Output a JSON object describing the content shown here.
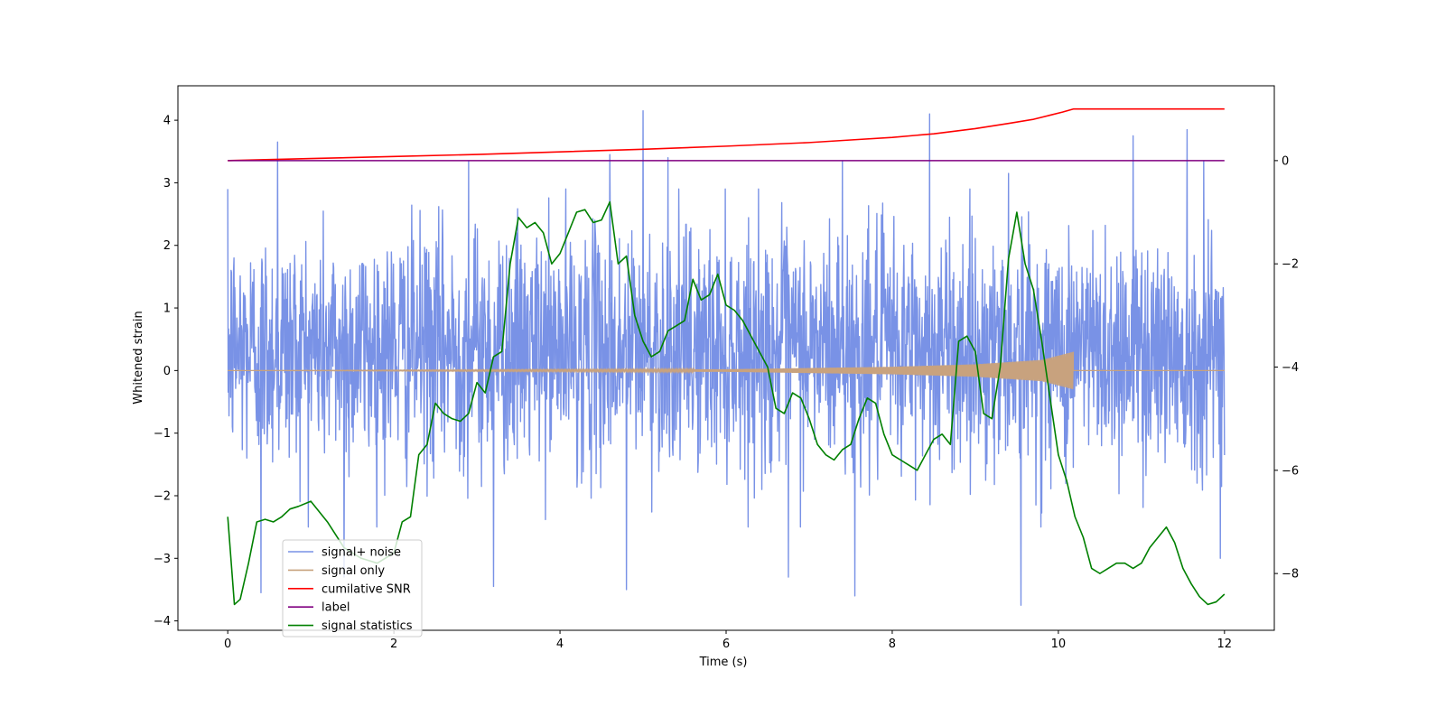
{
  "chart_data": {
    "type": "line",
    "xlabel": "Time (s)",
    "ylabel": "Whitened strain",
    "xlim": [
      -0.6,
      12.6
    ],
    "ylim_left": [
      -4.15,
      4.55
    ],
    "ylim_right": [
      -9.1,
      1.45
    ],
    "xticks": [
      0,
      2,
      4,
      6,
      8,
      10,
      12
    ],
    "yticks_left": [
      -4,
      -3,
      -2,
      -1,
      0,
      1,
      2,
      3,
      4
    ],
    "yticks_right": [
      -8,
      -6,
      -4,
      -2,
      0
    ],
    "grid": false,
    "legend_position": "lower-left",
    "series": [
      {
        "name": "signal+ noise",
        "axis": "left",
        "color": "#7992e6",
        "style": "noise",
        "x_range": [
          0,
          12
        ],
        "typical_min": -1.9,
        "typical_max": 2.6,
        "peaks": [
          [
            0.6,
            3.65
          ],
          [
            2.9,
            3.35
          ],
          [
            4.6,
            3.45
          ],
          [
            5.0,
            4.15
          ],
          [
            5.3,
            3.4
          ],
          [
            7.4,
            3.35
          ],
          [
            8.45,
            4.1
          ],
          [
            9.4,
            3.15
          ],
          [
            10.9,
            3.75
          ],
          [
            11.55,
            3.85
          ],
          [
            11.75,
            3.35
          ]
        ],
        "troughs": [
          [
            0.4,
            -3.55
          ],
          [
            1.4,
            -3.3
          ],
          [
            3.2,
            -3.45
          ],
          [
            4.8,
            -3.5
          ],
          [
            6.75,
            -3.3
          ],
          [
            7.55,
            -3.6
          ],
          [
            9.55,
            -3.75
          ],
          [
            11.95,
            -3.0
          ]
        ]
      },
      {
        "name": "signal only",
        "axis": "left",
        "color": "#c8a27e",
        "style": "chirp",
        "x_range": [
          0,
          10.18
        ],
        "envelope": [
          [
            0,
            0.0
          ],
          [
            6,
            0.02
          ],
          [
            8,
            0.06
          ],
          [
            9,
            0.1
          ],
          [
            9.8,
            0.17
          ],
          [
            10.18,
            0.3
          ]
        ],
        "after": [
          10.18,
          12
        ]
      },
      {
        "name": "cumilative SNR",
        "axis": "right",
        "color": "#ff0000",
        "x": [
          0,
          1,
          2,
          3,
          4,
          5,
          6,
          7,
          7.5,
          8,
          8.5,
          9,
          9.4,
          9.7,
          9.9,
          10.05,
          10.18,
          10.5,
          11,
          11.5,
          12
        ],
        "y": [
          0.0,
          0.04,
          0.08,
          0.12,
          0.17,
          0.22,
          0.28,
          0.35,
          0.4,
          0.45,
          0.52,
          0.62,
          0.72,
          0.8,
          0.88,
          0.94,
          1.0,
          1.0,
          1.0,
          1.0,
          1.0
        ]
      },
      {
        "name": "label",
        "axis": "right",
        "color": "#800080",
        "x": [
          0,
          12
        ],
        "y": [
          0,
          0
        ]
      },
      {
        "name": "signal statistics",
        "axis": "right",
        "color": "#008000",
        "x": [
          0,
          0.08,
          0.15,
          0.25,
          0.35,
          0.45,
          0.55,
          0.65,
          0.75,
          0.85,
          1.0,
          1.2,
          1.4,
          1.6,
          1.8,
          2.0,
          2.1,
          2.2,
          2.3,
          2.4,
          2.5,
          2.6,
          2.7,
          2.8,
          2.9,
          3.0,
          3.1,
          3.2,
          3.3,
          3.4,
          3.5,
          3.6,
          3.7,
          3.8,
          3.9,
          4.0,
          4.1,
          4.2,
          4.3,
          4.4,
          4.5,
          4.6,
          4.7,
          4.8,
          4.9,
          5.0,
          5.1,
          5.2,
          5.3,
          5.4,
          5.5,
          5.6,
          5.7,
          5.8,
          5.9,
          6.0,
          6.1,
          6.2,
          6.3,
          6.4,
          6.5,
          6.6,
          6.7,
          6.8,
          6.9,
          7.0,
          7.1,
          7.2,
          7.3,
          7.4,
          7.5,
          7.6,
          7.7,
          7.8,
          7.9,
          8.0,
          8.1,
          8.2,
          8.3,
          8.4,
          8.5,
          8.6,
          8.7,
          8.8,
          8.9,
          9.0,
          9.1,
          9.2,
          9.3,
          9.4,
          9.5,
          9.6,
          9.7,
          9.8,
          9.9,
          10.0,
          10.1,
          10.2,
          10.3,
          10.4,
          10.5,
          10.6,
          10.7,
          10.8,
          10.9,
          11.0,
          11.1,
          11.2,
          11.3,
          11.4,
          11.5,
          11.6,
          11.7,
          11.8,
          11.9,
          12.0
        ],
        "y": [
          -6.9,
          -8.6,
          -8.5,
          -7.8,
          -7.0,
          -6.95,
          -7.0,
          -6.9,
          -6.75,
          -6.7,
          -6.6,
          -7.0,
          -7.5,
          -7.7,
          -7.8,
          -7.6,
          -7.0,
          -6.9,
          -5.7,
          -5.5,
          -4.7,
          -4.9,
          -5.0,
          -5.05,
          -4.9,
          -4.3,
          -4.5,
          -3.8,
          -3.7,
          -2.0,
          -1.1,
          -1.3,
          -1.2,
          -1.4,
          -2.0,
          -1.8,
          -1.4,
          -1.0,
          -0.95,
          -1.2,
          -1.15,
          -0.8,
          -2.0,
          -1.85,
          -3.0,
          -3.5,
          -3.8,
          -3.7,
          -3.3,
          -3.2,
          -3.1,
          -2.3,
          -2.7,
          -2.6,
          -2.2,
          -2.8,
          -2.9,
          -3.1,
          -3.4,
          -3.7,
          -4.0,
          -4.8,
          -4.9,
          -4.5,
          -4.6,
          -5.0,
          -5.5,
          -5.7,
          -5.8,
          -5.6,
          -5.5,
          -5.0,
          -4.6,
          -4.7,
          -5.3,
          -5.7,
          -5.8,
          -5.9,
          -6.0,
          -5.7,
          -5.4,
          -5.3,
          -5.5,
          -3.5,
          -3.4,
          -3.7,
          -4.9,
          -5.0,
          -4.0,
          -1.9,
          -1.0,
          -2.0,
          -2.5,
          -3.5,
          -4.6,
          -5.7,
          -6.2,
          -6.9,
          -7.3,
          -7.9,
          -8.0,
          -7.9,
          -7.8,
          -7.8,
          -7.9,
          -7.8,
          -7.5,
          -7.3,
          -7.1,
          -7.4,
          -7.9,
          -8.2,
          -8.45,
          -8.6,
          -8.55,
          -8.4
        ]
      }
    ]
  }
}
